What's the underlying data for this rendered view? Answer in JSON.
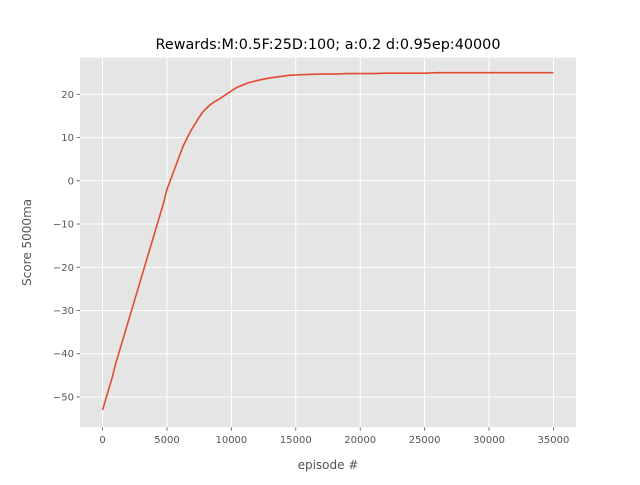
{
  "chart_data": {
    "type": "line",
    "title": "Rewards:M:0.5F:25D:100; a:0.2 d:0.95ep:40000",
    "xlabel": "episode #",
    "ylabel": "Score 5000ma",
    "xlim": [
      -1750,
      36750
    ],
    "ylim": [
      -57,
      28.5
    ],
    "xticks": [
      0,
      5000,
      10000,
      15000,
      20000,
      25000,
      30000,
      35000
    ],
    "yticks": [
      -50,
      -40,
      -30,
      -20,
      -10,
      0,
      10,
      20
    ],
    "xtick_labels": [
      "0",
      "5000",
      "10000",
      "15000",
      "20000",
      "25000",
      "30000",
      "35000"
    ],
    "ytick_labels": [
      "−50",
      "−40",
      "−30",
      "−20",
      "−10",
      "0",
      "10",
      "20"
    ],
    "grid": true,
    "background": "#E5E5E5",
    "series": [
      {
        "color": "#E24A33",
        "x": [
          0,
          250,
          500,
          750,
          1000,
          1250,
          1500,
          1750,
          2000,
          2250,
          2500,
          2750,
          3000,
          3250,
          3500,
          3750,
          4000,
          4250,
          4500,
          4750,
          5000,
          5250,
          5500,
          5750,
          6000,
          6250,
          6500,
          6750,
          7000,
          7250,
          7500,
          7750,
          8000,
          8250,
          8500,
          8750,
          9000,
          9250,
          9500,
          9750,
          10000,
          10250,
          10500,
          10750,
          11000,
          11250,
          11500,
          11750,
          12000,
          12500,
          13000,
          13500,
          14000,
          14500,
          15000,
          16000,
          17000,
          18000,
          19000,
          20000,
          21000,
          22000,
          23000,
          24000,
          25000,
          26000,
          27000,
          28000,
          29000,
          30000,
          31000,
          32000,
          33000,
          34000,
          35000
        ],
        "y": [
          -53.0,
          -50.5,
          -48.0,
          -45.5,
          -42.5,
          -40.0,
          -37.5,
          -35.0,
          -32.5,
          -30.0,
          -27.5,
          -25.0,
          -22.5,
          -20.0,
          -17.5,
          -15.0,
          -12.5,
          -10.0,
          -7.5,
          -5.0,
          -2.0,
          0.0,
          2.0,
          4.0,
          6.0,
          8.0,
          9.5,
          11.0,
          12.3,
          13.5,
          14.7,
          15.8,
          16.6,
          17.3,
          17.9,
          18.4,
          18.8,
          19.3,
          19.8,
          20.3,
          20.8,
          21.3,
          21.7,
          22.0,
          22.3,
          22.6,
          22.8,
          23.0,
          23.2,
          23.5,
          23.8,
          24.0,
          24.2,
          24.4,
          24.5,
          24.6,
          24.7,
          24.7,
          24.8,
          24.8,
          24.8,
          24.9,
          24.9,
          24.9,
          24.9,
          25.0,
          25.0,
          25.0,
          25.0,
          25.0,
          25.0,
          25.0,
          25.0,
          25.0,
          25.0
        ]
      }
    ]
  }
}
